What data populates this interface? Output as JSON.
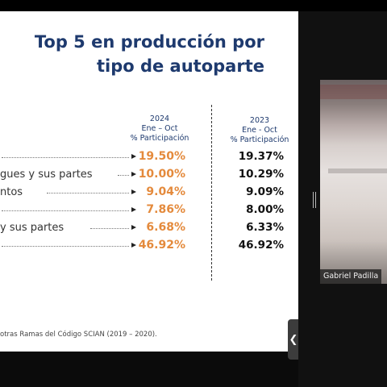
{
  "slide": {
    "title_line1": "Top 5 en producción por",
    "title_line2": "tipo de autoparte",
    "col_2024": {
      "year": "2024",
      "period": "Ene – Oct",
      "metric": "% Participación"
    },
    "col_2023": {
      "year": "2023",
      "period": "Ene - Oct",
      "metric": "% Participación"
    },
    "rows": [
      {
        "label": "",
        "v2024": "19.50%",
        "v2023": "19.37%"
      },
      {
        "label": "gues y sus partes",
        "v2024": "10.00%",
        "v2023": "10.29%"
      },
      {
        "label": "ntos",
        "v2024": "9.04%",
        "v2023": "9.09%"
      },
      {
        "label": "",
        "v2024": "7.86%",
        "v2023": "8.00%"
      },
      {
        "label": "y sus partes",
        "v2024": "6.68%",
        "v2023": "6.33%"
      },
      {
        "label": "",
        "v2024": "46.92%",
        "v2023": "46.92%"
      }
    ],
    "footnote": "otras Ramas del Código SCIAN (2019 – 2020).",
    "accent_color": "#e48a3c",
    "title_color": "#1e3a6e"
  },
  "participant": {
    "name": "Gabriel Padilla"
  },
  "controls": {
    "collapse_glyph": "❮"
  }
}
